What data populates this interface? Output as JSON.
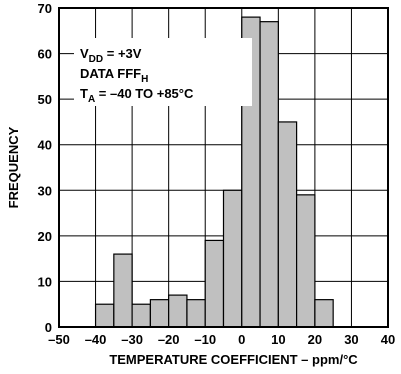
{
  "chart_data": {
    "type": "bar",
    "xlabel": "TEMPERATURE COEFFICIENT – ppm/°C",
    "ylabel": "FREQUENCY",
    "xlim": [
      -50,
      40
    ],
    "ylim": [
      0,
      70
    ],
    "bin_width": 5,
    "x_ticks": [
      -50,
      -40,
      -30,
      -20,
      -10,
      0,
      10,
      20,
      30,
      40
    ],
    "x_tick_labels": [
      "–50",
      "–40",
      "–30",
      "–20",
      "–10",
      "0",
      "10",
      "20",
      "30",
      "40"
    ],
    "y_ticks": [
      0,
      10,
      20,
      30,
      40,
      50,
      60,
      70
    ],
    "y_tick_labels": [
      "0",
      "10",
      "20",
      "30",
      "40",
      "50",
      "60",
      "70"
    ],
    "grid": true,
    "bar_color": "#c0c0c0",
    "bins": [
      {
        "x0": -40,
        "x1": -35,
        "value": 5
      },
      {
        "x0": -35,
        "x1": -30,
        "value": 16
      },
      {
        "x0": -30,
        "x1": -25,
        "value": 5
      },
      {
        "x0": -25,
        "x1": -20,
        "value": 6
      },
      {
        "x0": -20,
        "x1": -15,
        "value": 7
      },
      {
        "x0": -15,
        "x1": -10,
        "value": 6
      },
      {
        "x0": -10,
        "x1": -5,
        "value": 19
      },
      {
        "x0": -5,
        "x1": 0,
        "value": 30
      },
      {
        "x0": 0,
        "x1": 5,
        "value": 68
      },
      {
        "x0": 5,
        "x1": 10,
        "value": 67
      },
      {
        "x0": 10,
        "x1": 15,
        "value": 45
      },
      {
        "x0": 15,
        "x1": 20,
        "value": 29
      },
      {
        "x0": 20,
        "x1": 25,
        "value": 6
      }
    ],
    "annotations": [
      {
        "main": "V",
        "sub": "DD",
        "rest": " = +3V"
      },
      {
        "main": "DATA FFF",
        "sub": "H",
        "rest": ""
      },
      {
        "main": "T",
        "sub": "A",
        "rest": " = –40 TO +85°C"
      }
    ]
  }
}
